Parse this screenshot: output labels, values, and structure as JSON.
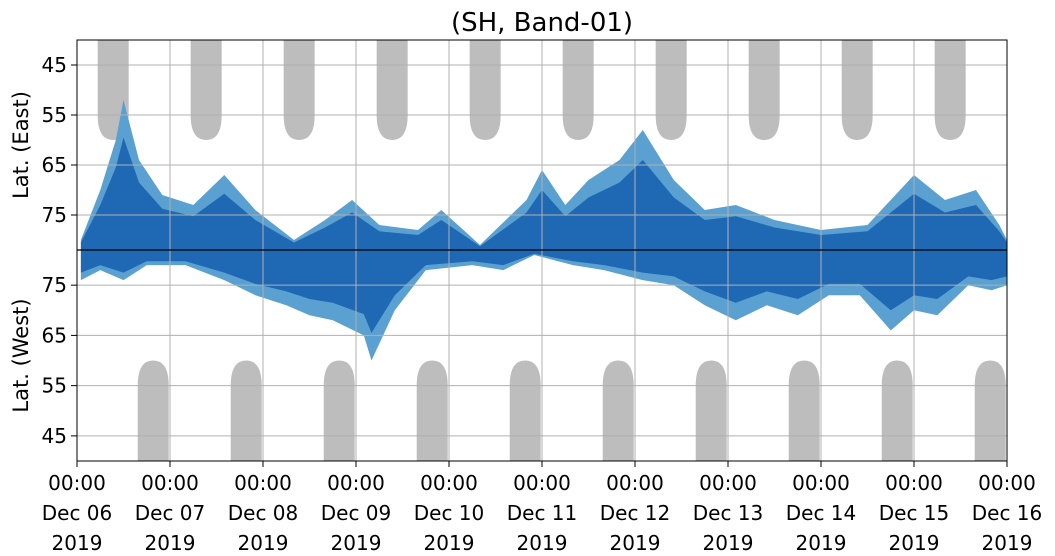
{
  "chart_data": {
    "type": "heatmap",
    "title": "(SH, Band-01)",
    "ylabel_east": "Lat. (East)",
    "ylabel_west": "Lat. (West)",
    "grid": true,
    "x_ticks": [
      {
        "date": "2019-12-06T00:00",
        "time": "00:00",
        "day": "Dec 06",
        "year": "2019"
      },
      {
        "date": "2019-12-07T00:00",
        "time": "00:00",
        "day": "Dec 07",
        "year": "2019"
      },
      {
        "date": "2019-12-08T00:00",
        "time": "00:00",
        "day": "Dec 08",
        "year": "2019"
      },
      {
        "date": "2019-12-09T00:00",
        "time": "00:00",
        "day": "Dec 09",
        "year": "2019"
      },
      {
        "date": "2019-12-10T00:00",
        "time": "00:00",
        "day": "Dec 10",
        "year": "2019"
      },
      {
        "date": "2019-12-11T00:00",
        "time": "00:00",
        "day": "Dec 11",
        "year": "2019"
      },
      {
        "date": "2019-12-12T00:00",
        "time": "00:00",
        "day": "Dec 12",
        "year": "2019"
      },
      {
        "date": "2019-12-13T00:00",
        "time": "00:00",
        "day": "Dec 13",
        "year": "2019"
      },
      {
        "date": "2019-12-14T00:00",
        "time": "00:00",
        "day": "Dec 14",
        "year": "2019"
      },
      {
        "date": "2019-12-15T00:00",
        "time": "00:00",
        "day": "Dec 15",
        "year": "2019"
      },
      {
        "date": "2019-12-16T00:00",
        "time": "00:00",
        "day": "Dec 16",
        "year": "2019"
      }
    ],
    "xlim": [
      "2019-12-06T00:00",
      "2019-12-16T00:00"
    ],
    "y_east_ticks": [
      45,
      55,
      65,
      75
    ],
    "y_west_ticks": [
      75,
      65,
      55,
      45
    ],
    "ylim_east": [
      40,
      82
    ],
    "ylim_west": [
      82,
      40
    ],
    "colors": {
      "activity_dark": "#1f68b4",
      "activity_light": "#5aa0d0",
      "no_data": "#bdbdbd",
      "grid": "#b0b0b0",
      "separator": "#000000"
    },
    "no_data_east": [
      {
        "center": "2019-12-06T09:20",
        "half_width_hours": 4,
        "min_lat": 60
      },
      {
        "center": "2019-12-07T09:20",
        "half_width_hours": 4,
        "min_lat": 60
      },
      {
        "center": "2019-12-08T09:20",
        "half_width_hours": 4,
        "min_lat": 60
      },
      {
        "center": "2019-12-09T09:20",
        "half_width_hours": 4,
        "min_lat": 60
      },
      {
        "center": "2019-12-10T09:20",
        "half_width_hours": 4,
        "min_lat": 60
      },
      {
        "center": "2019-12-11T09:20",
        "half_width_hours": 4,
        "min_lat": 60
      },
      {
        "center": "2019-12-12T09:20",
        "half_width_hours": 4,
        "min_lat": 60
      },
      {
        "center": "2019-12-13T09:20",
        "half_width_hours": 4,
        "min_lat": 60
      },
      {
        "center": "2019-12-14T09:20",
        "half_width_hours": 4,
        "min_lat": 60
      },
      {
        "center": "2019-12-15T09:20",
        "half_width_hours": 4,
        "min_lat": 60
      }
    ],
    "no_data_west": [
      {
        "center": "2019-12-06T19:40",
        "half_width_hours": 4,
        "min_lat": 60
      },
      {
        "center": "2019-12-07T19:40",
        "half_width_hours": 4,
        "min_lat": 60
      },
      {
        "center": "2019-12-08T19:40",
        "half_width_hours": 4,
        "min_lat": 60
      },
      {
        "center": "2019-12-09T19:40",
        "half_width_hours": 4,
        "min_lat": 60
      },
      {
        "center": "2019-12-10T19:40",
        "half_width_hours": 4,
        "min_lat": 60
      },
      {
        "center": "2019-12-11T19:40",
        "half_width_hours": 4,
        "min_lat": 60
      },
      {
        "center": "2019-12-12T19:40",
        "half_width_hours": 4,
        "min_lat": 60
      },
      {
        "center": "2019-12-13T19:40",
        "half_width_hours": 4,
        "min_lat": 60
      },
      {
        "center": "2019-12-14T19:40",
        "half_width_hours": 4,
        "min_lat": 60
      },
      {
        "center": "2019-12-15T19:40",
        "half_width_hours": 4,
        "min_lat": 60
      }
    ],
    "activity_east": [
      {
        "t": "2019-12-06T01:00",
        "lat": [
          80,
          82
        ]
      },
      {
        "t": "2019-12-06T06:00",
        "lat": [
          70,
          82
        ]
      },
      {
        "t": "2019-12-06T10:00",
        "lat": [
          60,
          82
        ]
      },
      {
        "t": "2019-12-06T12:00",
        "lat": [
          52,
          82
        ]
      },
      {
        "t": "2019-12-06T16:00",
        "lat": [
          64,
          82
        ]
      },
      {
        "t": "2019-12-06T22:00",
        "lat": [
          71,
          82
        ]
      },
      {
        "t": "2019-12-07T06:00",
        "lat": [
          73,
          82
        ]
      },
      {
        "t": "2019-12-07T14:00",
        "lat": [
          67,
          82
        ]
      },
      {
        "t": "2019-12-07T22:00",
        "lat": [
          74,
          82
        ]
      },
      {
        "t": "2019-12-08T08:00",
        "lat": [
          80,
          82
        ]
      },
      {
        "t": "2019-12-08T16:00",
        "lat": [
          76,
          82
        ]
      },
      {
        "t": "2019-12-08T23:00",
        "lat": [
          72,
          82
        ]
      },
      {
        "t": "2019-12-09T06:00",
        "lat": [
          77,
          82
        ]
      },
      {
        "t": "2019-12-09T16:00",
        "lat": [
          78,
          82
        ]
      },
      {
        "t": "2019-12-09T22:00",
        "lat": [
          74,
          82
        ]
      },
      {
        "t": "2019-12-10T08:00",
        "lat": [
          81,
          82
        ]
      },
      {
        "t": "2019-12-10T20:00",
        "lat": [
          72,
          82
        ]
      },
      {
        "t": "2019-12-11T00:00",
        "lat": [
          66,
          82
        ]
      },
      {
        "t": "2019-12-11T06:00",
        "lat": [
          73,
          82
        ]
      },
      {
        "t": "2019-12-11T12:00",
        "lat": [
          68,
          82
        ]
      },
      {
        "t": "2019-12-11T20:00",
        "lat": [
          64,
          82
        ]
      },
      {
        "t": "2019-12-12T02:00",
        "lat": [
          58,
          82
        ]
      },
      {
        "t": "2019-12-12T10:00",
        "lat": [
          68,
          82
        ]
      },
      {
        "t": "2019-12-12T18:00",
        "lat": [
          74,
          82
        ]
      },
      {
        "t": "2019-12-13T02:00",
        "lat": [
          73,
          82
        ]
      },
      {
        "t": "2019-12-13T12:00",
        "lat": [
          76,
          82
        ]
      },
      {
        "t": "2019-12-14T00:00",
        "lat": [
          78,
          82
        ]
      },
      {
        "t": "2019-12-14T12:00",
        "lat": [
          77,
          82
        ]
      },
      {
        "t": "2019-12-15T00:00",
        "lat": [
          67,
          82
        ]
      },
      {
        "t": "2019-12-15T08:00",
        "lat": [
          72,
          82
        ]
      },
      {
        "t": "2019-12-15T16:00",
        "lat": [
          70,
          82
        ]
      },
      {
        "t": "2019-12-15T22:00",
        "lat": [
          77,
          82
        ]
      },
      {
        "t": "2019-12-16T00:00",
        "lat": [
          80,
          82
        ]
      }
    ],
    "activity_west": [
      {
        "t": "2019-12-06T01:00",
        "lat": [
          76,
          82
        ]
      },
      {
        "t": "2019-12-06T06:00",
        "lat": [
          78,
          82
        ]
      },
      {
        "t": "2019-12-06T12:00",
        "lat": [
          76,
          82
        ]
      },
      {
        "t": "2019-12-06T18:00",
        "lat": [
          79,
          82
        ]
      },
      {
        "t": "2019-12-07T04:00",
        "lat": [
          79,
          82
        ]
      },
      {
        "t": "2019-12-07T14:00",
        "lat": [
          76,
          82
        ]
      },
      {
        "t": "2019-12-07T22:00",
        "lat": [
          73,
          82
        ]
      },
      {
        "t": "2019-12-08T06:00",
        "lat": [
          71,
          82
        ]
      },
      {
        "t": "2019-12-08T12:00",
        "lat": [
          69,
          82
        ]
      },
      {
        "t": "2019-12-08T18:00",
        "lat": [
          68,
          82
        ]
      },
      {
        "t": "2019-12-09T02:00",
        "lat": [
          65,
          82
        ]
      },
      {
        "t": "2019-12-09T04:00",
        "lat": [
          60,
          82
        ]
      },
      {
        "t": "2019-12-09T10:00",
        "lat": [
          70,
          82
        ]
      },
      {
        "t": "2019-12-09T18:00",
        "lat": [
          78,
          82
        ]
      },
      {
        "t": "2019-12-10T06:00",
        "lat": [
          79,
          82
        ]
      },
      {
        "t": "2019-12-10T14:00",
        "lat": [
          78,
          82
        ]
      },
      {
        "t": "2019-12-10T22:00",
        "lat": [
          81,
          82
        ]
      },
      {
        "t": "2019-12-11T08:00",
        "lat": [
          79,
          82
        ]
      },
      {
        "t": "2019-12-11T16:00",
        "lat": [
          78,
          82
        ]
      },
      {
        "t": "2019-12-12T02:00",
        "lat": [
          76,
          82
        ]
      },
      {
        "t": "2019-12-12T10:00",
        "lat": [
          75,
          82
        ]
      },
      {
        "t": "2019-12-12T18:00",
        "lat": [
          71,
          82
        ]
      },
      {
        "t": "2019-12-13T02:00",
        "lat": [
          68,
          82
        ]
      },
      {
        "t": "2019-12-13T10:00",
        "lat": [
          71,
          82
        ]
      },
      {
        "t": "2019-12-13T18:00",
        "lat": [
          69,
          82
        ]
      },
      {
        "t": "2019-12-14T02:00",
        "lat": [
          73,
          82
        ]
      },
      {
        "t": "2019-12-14T10:00",
        "lat": [
          73,
          82
        ]
      },
      {
        "t": "2019-12-14T18:00",
        "lat": [
          66,
          82
        ]
      },
      {
        "t": "2019-12-15T00:00",
        "lat": [
          70,
          82
        ]
      },
      {
        "t": "2019-12-15T06:00",
        "lat": [
          69,
          82
        ]
      },
      {
        "t": "2019-12-15T14:00",
        "lat": [
          75,
          82
        ]
      },
      {
        "t": "2019-12-15T20:00",
        "lat": [
          74,
          82
        ]
      },
      {
        "t": "2019-12-16T00:00",
        "lat": [
          75,
          82
        ]
      }
    ]
  }
}
